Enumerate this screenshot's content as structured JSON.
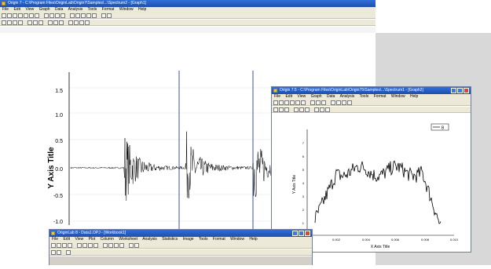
{
  "main_window": {
    "title": "Origin 7 - C:\\Program Files\\OriginLab\\Origin7\\Samples\\...\\Spectrum2 - [Graph1]",
    "menu": [
      "File",
      "Edit",
      "View",
      "Graph",
      "Data",
      "Analysis",
      "Tools",
      "Format",
      "Window",
      "Help"
    ]
  },
  "main_chart": {
    "type": "line",
    "ylabel": "Y Axis Title",
    "yticks": [
      "1.5",
      "1.0",
      "0.5",
      "0.0",
      "-0.5",
      "-1.0"
    ],
    "ylim": [
      -1.1,
      1.75
    ],
    "bursts_at_fraction": [
      0.25,
      0.53,
      0.8
    ],
    "line_color": "#000000",
    "cursor_color": "#3a50b0"
  },
  "second_window": {
    "title": "Origin 7.5 - C:\\Program Files\\OriginLab\\Origin75\\Samples\\...\\Spectrum1 - [Graph2]",
    "menu": [
      "File",
      "Edit",
      "View",
      "Graph",
      "Data",
      "Analysis",
      "Tools",
      "Format",
      "Window",
      "Help"
    ],
    "legend": "B",
    "xlabel": "X Axis Title",
    "ylabel": "Y Axis Title",
    "xticks": [
      "0",
      "0.002",
      "0.004",
      "0.006",
      "0.008",
      "0.010"
    ],
    "yticks": [
      "7",
      "6",
      "5",
      "4",
      "3",
      "2",
      "1"
    ]
  },
  "third_window": {
    "title": "OriginLab 8 - Data1.OPJ - [Workbook1]",
    "menu": [
      "File",
      "Edit",
      "View",
      "Plot",
      "Column",
      "Worksheet",
      "Analysis",
      "Statistics",
      "Image",
      "Tools",
      "Format",
      "Window",
      "Help"
    ]
  },
  "chart_data": [
    {
      "type": "line",
      "title": "",
      "xlabel": "",
      "ylabel": "Y Axis Title",
      "ylim": [
        -1.0,
        1.5
      ],
      "note": "vibration-like signal with three decaying bursts"
    },
    {
      "type": "line",
      "title": "",
      "xlabel": "X Axis Title",
      "ylabel": "Y Axis Title",
      "legend": [
        "B"
      ],
      "x_range": [
        0,
        0.01
      ]
    }
  ]
}
